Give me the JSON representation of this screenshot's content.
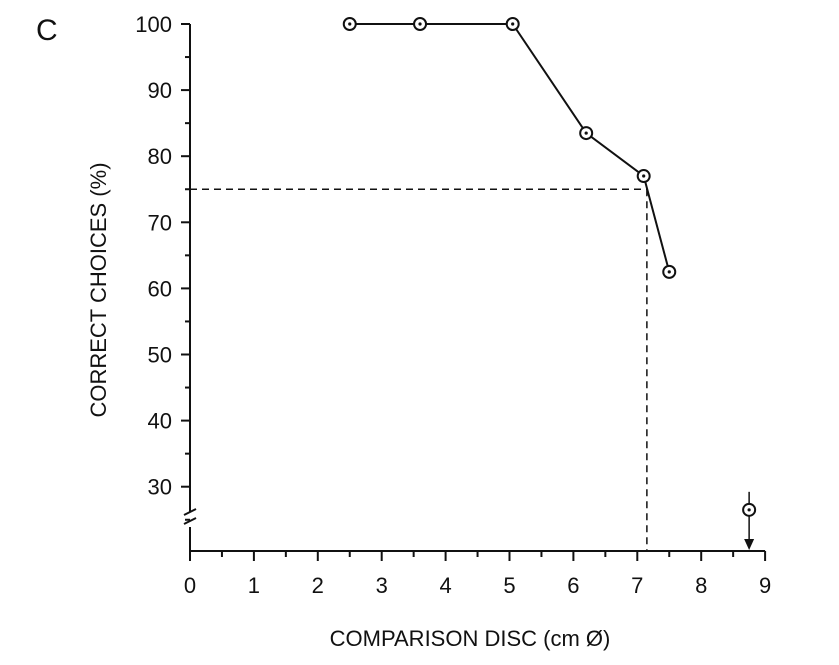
{
  "chart_data": {
    "type": "line",
    "panel_label": "C",
    "xlabel": "COMPARISON DISC (cm Ø)",
    "ylabel": "CORRECT CHOICES (%)",
    "xlim": [
      0,
      9
    ],
    "ylim": [
      20,
      100
    ],
    "x_ticks": [
      0,
      1,
      2,
      3,
      4,
      5,
      6,
      7,
      8,
      9
    ],
    "y_ticks": [
      30,
      40,
      50,
      60,
      70,
      80,
      90,
      100
    ],
    "y_axis_break": true,
    "grid": false,
    "series": [
      {
        "x": [
          2.5,
          3.6,
          5.05,
          6.2,
          7.1,
          7.5
        ],
        "y": [
          100,
          100,
          100,
          83.5,
          77,
          62.5
        ]
      }
    ],
    "isolated_point": {
      "x": 8.75,
      "y": 26.5,
      "arrow_down": true
    },
    "threshold": {
      "y": 75,
      "x": 7.15
    }
  }
}
